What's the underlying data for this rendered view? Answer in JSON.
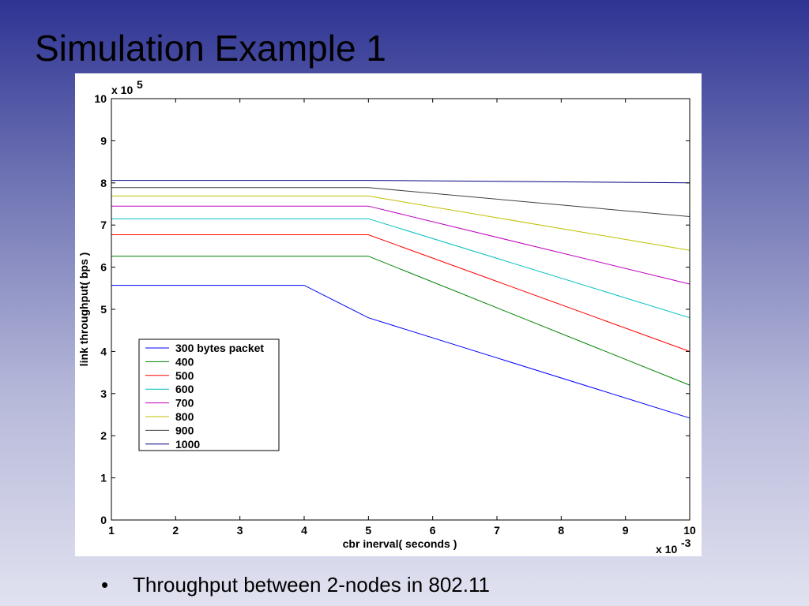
{
  "slide": {
    "title": "Simulation Example 1",
    "bullet_marker": "•",
    "bullet_text": "Throughput between 2-nodes in 802.11"
  },
  "chart_data": {
    "type": "line",
    "title": "",
    "xlabel": "cbr inerval( seconds )",
    "ylabel": "link throughput( bps )",
    "x_multiplier": {
      "base": "x 10",
      "exponent": "-3"
    },
    "y_multiplier": {
      "base": "x 10",
      "exponent": "5"
    },
    "xlim": [
      1,
      10
    ],
    "ylim": [
      0,
      10
    ],
    "x_ticks": [
      "1",
      "2",
      "3",
      "4",
      "5",
      "6",
      "7",
      "8",
      "9",
      "10"
    ],
    "y_ticks": [
      "0",
      "1",
      "2",
      "3",
      "4",
      "5",
      "6",
      "7",
      "8",
      "9",
      "10"
    ],
    "legend_placement": "lower-left",
    "grid": false,
    "series": [
      {
        "name": "300 bytes packet",
        "color": "#0000ff",
        "x": [
          1,
          4,
          5,
          10
        ],
        "y": [
          5.57,
          5.57,
          4.8,
          2.42
        ]
      },
      {
        "name": "400",
        "color": "#008000",
        "x": [
          1,
          5,
          10
        ],
        "y": [
          6.26,
          6.26,
          3.2
        ]
      },
      {
        "name": "500",
        "color": "#ff0000",
        "x": [
          1,
          5,
          10
        ],
        "y": [
          6.77,
          6.77,
          4.0
        ]
      },
      {
        "name": "600",
        "color": "#00bfbf",
        "x": [
          1,
          5,
          10
        ],
        "y": [
          7.15,
          7.15,
          4.8
        ]
      },
      {
        "name": "700",
        "color": "#bf00bf",
        "x": [
          1,
          5,
          10
        ],
        "y": [
          7.45,
          7.45,
          5.6
        ]
      },
      {
        "name": "800",
        "color": "#bfbf00",
        "x": [
          1,
          5,
          10
        ],
        "y": [
          7.69,
          7.69,
          6.4
        ]
      },
      {
        "name": "900",
        "color": "#3f3f3f",
        "x": [
          1,
          5,
          10
        ],
        "y": [
          7.89,
          7.89,
          7.2
        ]
      },
      {
        "name": "1000",
        "color": "#000080",
        "x": [
          1,
          5,
          10
        ],
        "y": [
          8.06,
          8.06,
          8.0
        ]
      }
    ]
  }
}
